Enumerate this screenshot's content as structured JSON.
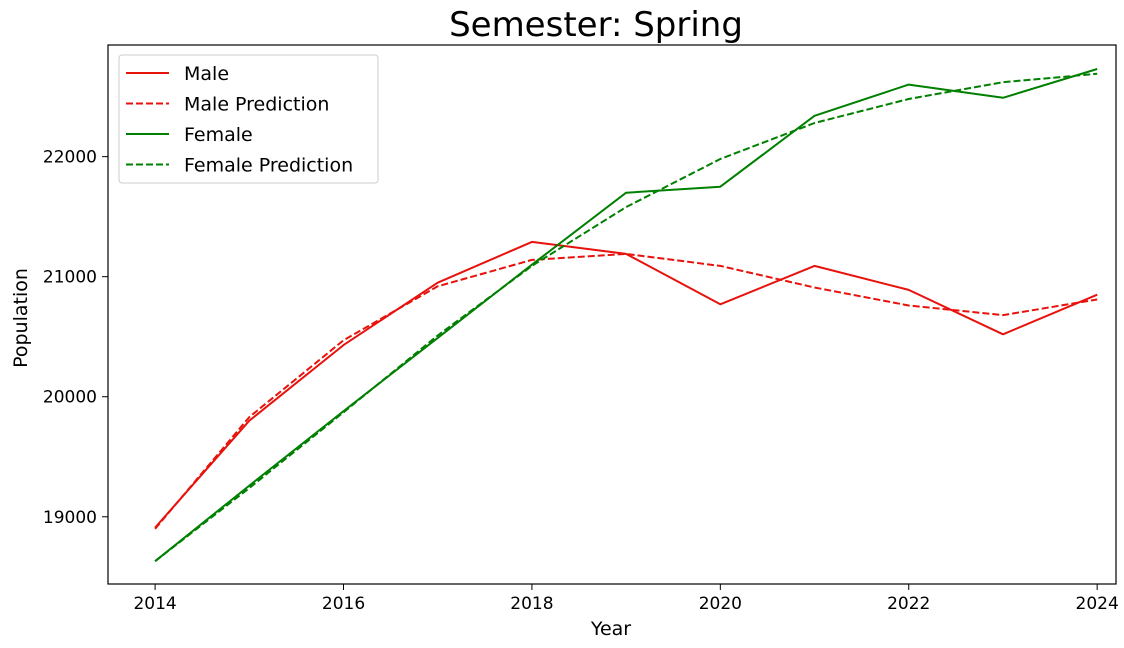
{
  "chart_data": {
    "type": "line",
    "title": "Semester: Spring",
    "xlabel": "Year",
    "ylabel": "Population",
    "xlim": [
      2013.5,
      2024.2
    ],
    "ylim": [
      18440,
      22930
    ],
    "xticks": [
      2014,
      2016,
      2018,
      2020,
      2022,
      2024
    ],
    "yticks": [
      19000,
      20000,
      21000,
      22000
    ],
    "grid": false,
    "legend_position": "top-left",
    "x": [
      2014,
      2015,
      2016,
      2017,
      2018,
      2019,
      2020,
      2021,
      2022,
      2023,
      2024
    ],
    "series": [
      {
        "name": "Male",
        "color": "#e8120c",
        "dash": "solid",
        "values": [
          18910,
          19800,
          20430,
          20950,
          21290,
          21190,
          20770,
          21090,
          20890,
          20520,
          20850
        ]
      },
      {
        "name": "Male Prediction",
        "color": "#e8120c",
        "dash": "dashed",
        "values": [
          18900,
          19830,
          20470,
          20920,
          21140,
          21190,
          21090,
          20910,
          20760,
          20680,
          20810
        ]
      },
      {
        "name": "Female",
        "color": "#008000",
        "dash": "solid",
        "values": [
          18630,
          19260,
          19880,
          20490,
          21100,
          21700,
          21750,
          22340,
          22600,
          22490,
          22730
        ]
      },
      {
        "name": "Female Prediction",
        "color": "#008000",
        "dash": "dashed",
        "values": [
          18630,
          19240,
          19870,
          20510,
          21090,
          21580,
          21980,
          22280,
          22480,
          22620,
          22690
        ]
      }
    ]
  }
}
